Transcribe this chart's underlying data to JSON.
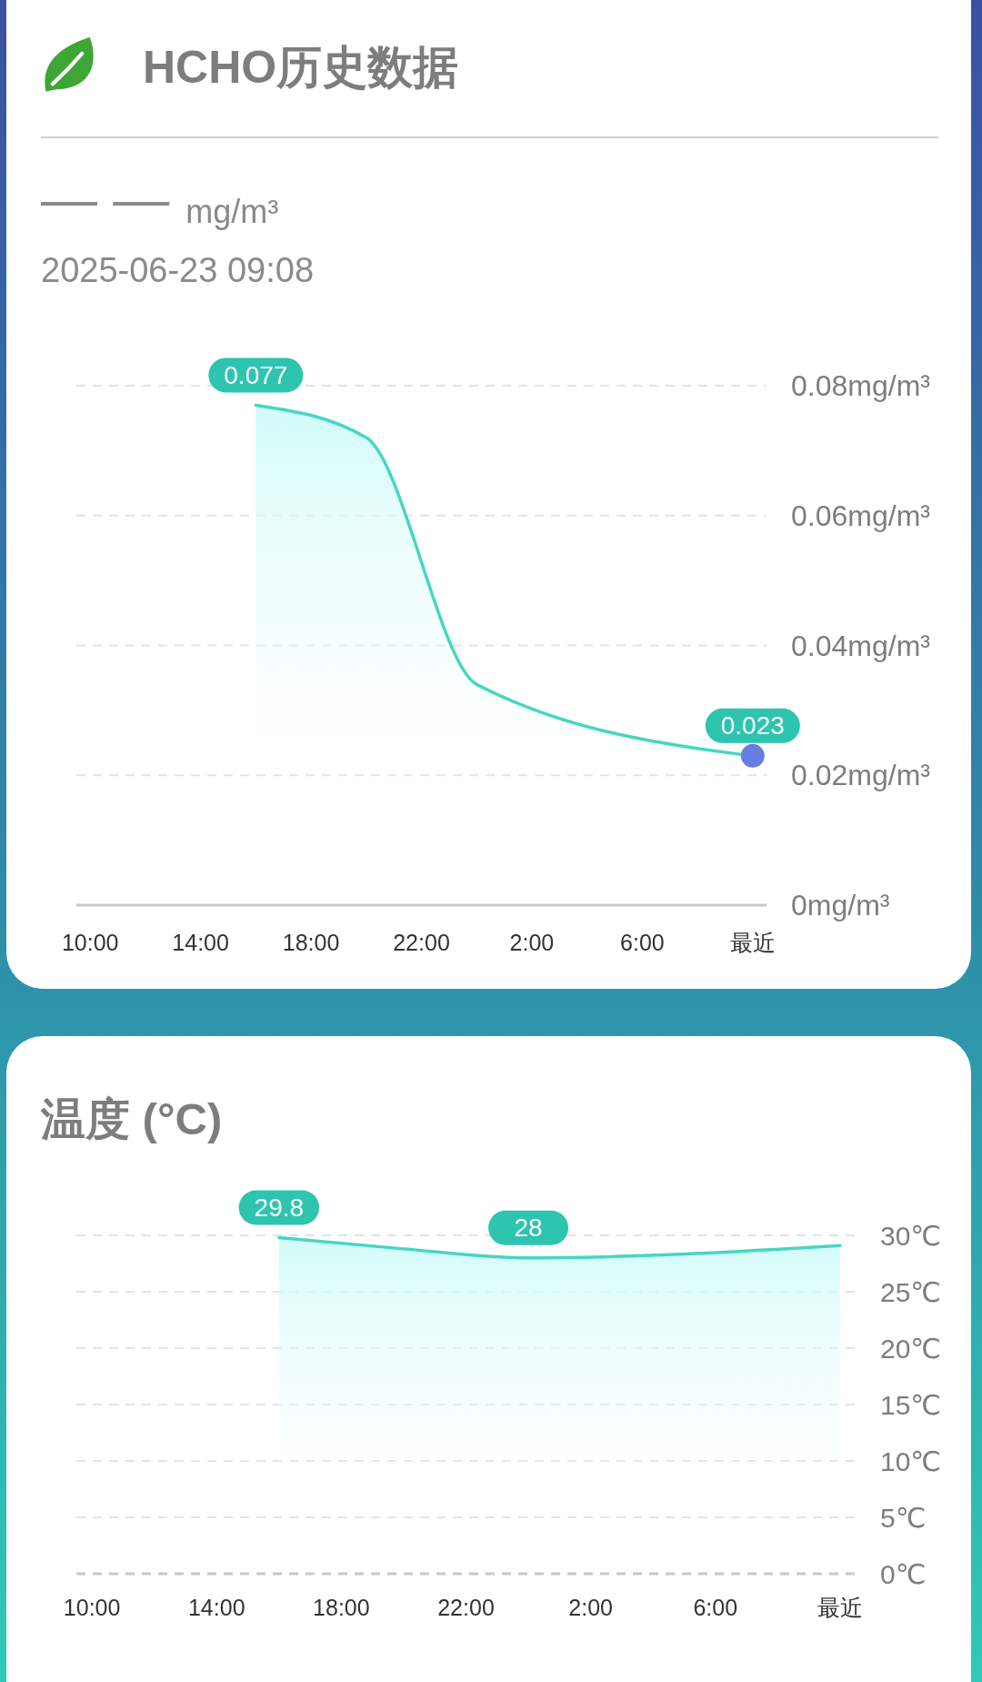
{
  "chart_data": [
    {
      "type": "area",
      "title": "HCHO历史数据",
      "annotations": [
        "— —",
        "mg/m³"
      ],
      "subtitle": "2025-06-23 09:08",
      "x": [
        "2025-06-22T16:00",
        "2025-06-22T20:00",
        "2025-06-23T00:00",
        "2025-06-23T10:00"
      ],
      "xlim": [
        "2025-06-22T09:30",
        "2025-06-23T10:30"
      ],
      "xticks": [
        {
          "value": "2025-06-22T10:00",
          "label": "10:00"
        },
        {
          "value": "2025-06-22T14:00",
          "label": "14:00"
        },
        {
          "value": "2025-06-22T18:00",
          "label": "18:00"
        },
        {
          "value": "2025-06-22T22:00",
          "label": "22:00"
        },
        {
          "value": "2025-06-23T02:00",
          "label": "2:00"
        },
        {
          "value": "2025-06-23T06:00",
          "label": "6:00"
        },
        {
          "value": "2025-06-23T10:00",
          "label": "最近"
        }
      ],
      "ylim": [
        0,
        0.08
      ],
      "yticks": [
        {
          "value": 0,
          "label": "0mg/m³"
        },
        {
          "value": 0.02,
          "label": "0.02mg/m³"
        },
        {
          "value": 0.04,
          "label": "0.04mg/m³"
        },
        {
          "value": 0.06,
          "label": "0.06mg/m³"
        },
        {
          "value": 0.08,
          "label": "0.08mg/m³"
        }
      ],
      "grid": "y",
      "series": [
        {
          "color": "#46d6c4",
          "values": [
            0.077,
            0.072,
            0.034,
            0.023
          ],
          "value_labels": [
            "0.077",
            null,
            null,
            "0.023"
          ]
        },
        {
          "type": "scatter",
          "color": "#6a7de0",
          "marker": "circle",
          "x": [
            "2025-06-23T10:00"
          ],
          "values": [
            0.023
          ]
        }
      ]
    },
    {
      "type": "area",
      "title": "温度 (°C)",
      "x": [
        "2025-06-22T16:00",
        "2025-06-22T20:00",
        "2025-06-23T00:00",
        "2025-06-23T10:00"
      ],
      "xlim": [
        "2025-06-22T09:30",
        "2025-06-23T10:30"
      ],
      "xticks": [
        {
          "value": "2025-06-22T10:00",
          "label": "10:00"
        },
        {
          "value": "2025-06-22T14:00",
          "label": "14:00"
        },
        {
          "value": "2025-06-22T18:00",
          "label": "18:00"
        },
        {
          "value": "2025-06-22T22:00",
          "label": "22:00"
        },
        {
          "value": "2025-06-23T02:00",
          "label": "2:00"
        },
        {
          "value": "2025-06-23T06:00",
          "label": "6:00"
        },
        {
          "value": "2025-06-23T10:00",
          "label": "最近"
        }
      ],
      "ylim": [
        0,
        30
      ],
      "yticks": [
        {
          "value": 0,
          "label": "0℃"
        },
        {
          "value": 5,
          "label": "5℃"
        },
        {
          "value": 10,
          "label": "10℃"
        },
        {
          "value": 15,
          "label": "15℃"
        },
        {
          "value": 20,
          "label": "20℃"
        },
        {
          "value": 25,
          "label": "25℃"
        },
        {
          "value": 30,
          "label": "30℃"
        }
      ],
      "grid": "y",
      "series": [
        {
          "color": "#46d6c4",
          "values": [
            29.8,
            28.8,
            28,
            29.1
          ],
          "value_labels": [
            "29.8",
            null,
            "28",
            null
          ]
        }
      ]
    }
  ]
}
